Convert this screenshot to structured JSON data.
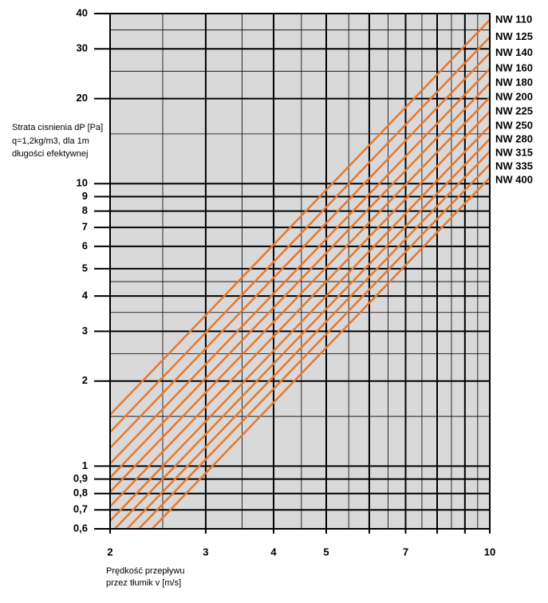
{
  "chart_data": {
    "type": "line",
    "y_label_lines": [
      "Strata cisnienia dP [Pa]",
      "q=1,2kg/m3, dla 1m",
      "długości efektywnej"
    ],
    "x_label_lines": [
      "Prędkość przepływu",
      "przez tłumik v [m/s]"
    ],
    "log_x": true,
    "log_y": true,
    "grid": true,
    "xlim": [
      2,
      10
    ],
    "ylim": [
      0.6,
      40
    ],
    "xticks": [
      2,
      3,
      4,
      5,
      7,
      10
    ],
    "x_unlabeled_major_grid": [
      6,
      8,
      9
    ],
    "x_minor_grid": [
      2.5,
      3.5,
      4.5,
      5.5,
      6.5,
      7.5,
      8.5,
      9.5
    ],
    "yticks": [
      {
        "value": 0.6,
        "label": "0,6"
      },
      {
        "value": 0.7,
        "label": "0,7"
      },
      {
        "value": 0.8,
        "label": "0,8"
      },
      {
        "value": 0.9,
        "label": "0,9"
      },
      1,
      2,
      3,
      4,
      5,
      6,
      7,
      8,
      9,
      10,
      20,
      30,
      40
    ],
    "y_minor_grid": [
      1.5,
      2.5,
      3.5,
      4.5,
      15,
      25,
      35
    ],
    "color": "#e8782a",
    "series": [
      {
        "name": "NW 110",
        "x": [
          2,
          10
        ],
        "values": [
          1.52,
          38
        ]
      },
      {
        "name": "NW 125",
        "x": [
          2,
          10
        ],
        "values": [
          1.32,
          33
        ]
      },
      {
        "name": "NW 140",
        "x": [
          2,
          10
        ],
        "values": [
          1.16,
          29
        ]
      },
      {
        "name": "NW 160",
        "x": [
          2,
          10
        ],
        "values": [
          1.02,
          25.5
        ]
      },
      {
        "name": "NW 180",
        "x": [
          2,
          10
        ],
        "values": [
          0.91,
          22.7
        ]
      },
      {
        "name": "NW 200",
        "x": [
          2,
          10
        ],
        "values": [
          0.81,
          20.2
        ]
      },
      {
        "name": "NW 225",
        "x": [
          2,
          10
        ],
        "values": [
          0.72,
          18
        ]
      },
      {
        "name": "NW 250",
        "x": [
          2,
          10
        ],
        "values": [
          0.64,
          16
        ]
      },
      {
        "name": "NW 280",
        "x": [
          2.04,
          10
        ],
        "values": [
          0.6,
          14.4
        ]
      },
      {
        "name": "NW 315",
        "x": [
          2.15,
          10
        ],
        "values": [
          0.6,
          13
        ]
      },
      {
        "name": "NW 335",
        "x": [
          2.26,
          10
        ],
        "values": [
          0.6,
          11.7
        ]
      },
      {
        "name": "NW 400",
        "x": [
          2.39,
          10
        ],
        "values": [
          0.6,
          10.5
        ]
      }
    ]
  }
}
